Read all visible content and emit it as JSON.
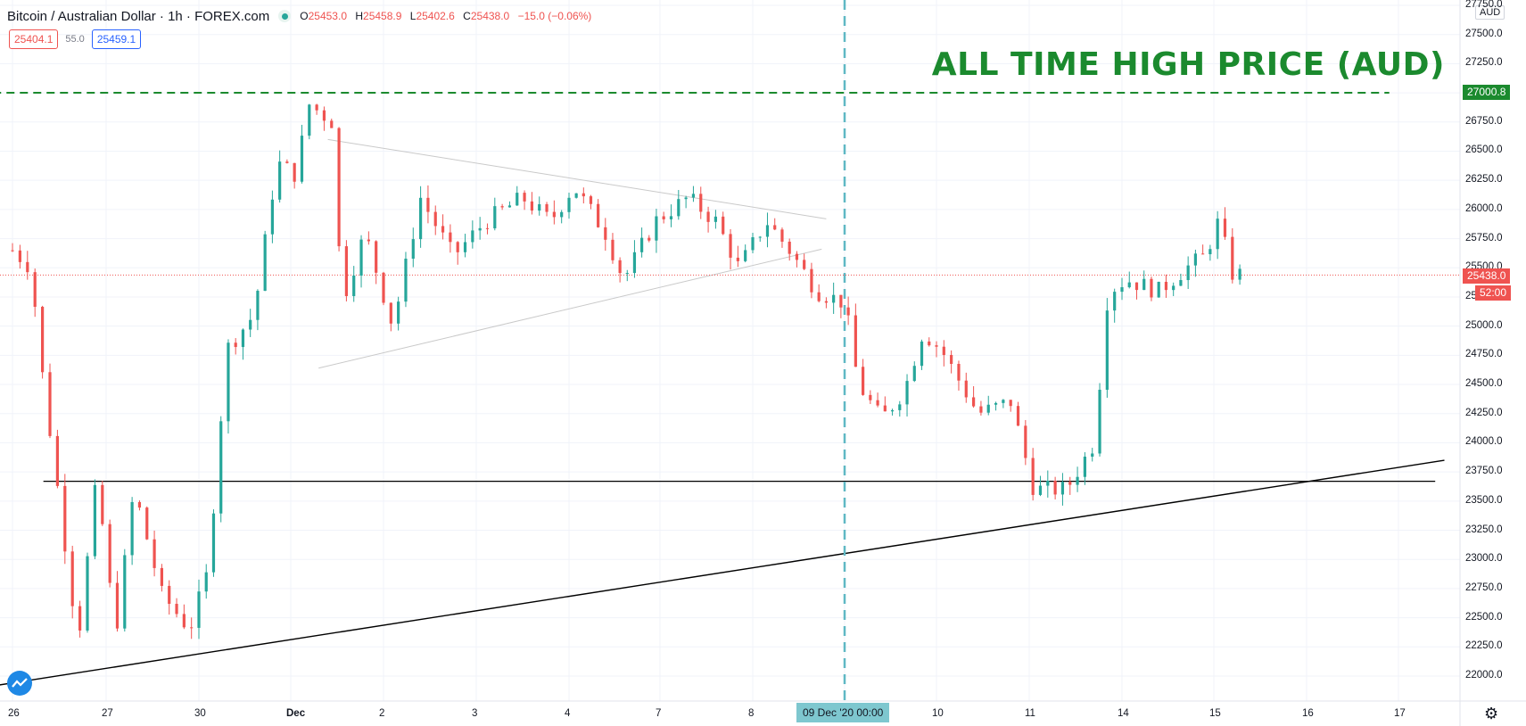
{
  "legend": {
    "symbol": "Bitcoin / Australian Dollar · 1h · FOREX.com",
    "open_key": "O",
    "open": "25453.0",
    "high_key": "H",
    "high": "25458.9",
    "low_key": "L",
    "low": "25402.6",
    "close_key": "C",
    "close": "25438.0",
    "change": "−15.0 (−0.06%)"
  },
  "quote": {
    "sell": "25404.1",
    "spread": "55.0",
    "buy": "25459.1"
  },
  "annotation": {
    "ath_text": "ALL TIME HIGH PRICE (AUD)"
  },
  "price_axis": {
    "currency": "AUD",
    "ticks": [
      "27750.0",
      "27500.0",
      "27250.0",
      "27000.0",
      "26750.0",
      "26500.0",
      "26250.0",
      "26000.0",
      "25750.0",
      "25500.0",
      "25250.0",
      "25000.0",
      "24750.0",
      "24500.0",
      "24250.0",
      "24000.0",
      "23750.0",
      "23500.0",
      "23250.0",
      "23000.0",
      "22750.0",
      "22500.0",
      "22250.0",
      "22000.0"
    ],
    "ath_level": "27000.8",
    "last_price": "25438.0",
    "countdown": "52:00"
  },
  "time_axis": {
    "ticks": [
      "26",
      "27",
      "30",
      "Dec",
      "2",
      "3",
      "4",
      "7",
      "8",
      "10",
      "11",
      "14",
      "15",
      "16",
      "17"
    ],
    "crosshair_label": "09 Dec '20  00:00"
  },
  "colors": {
    "up": "#26a69a",
    "down": "#ef5350",
    "ath_line": "#1b8a2e",
    "crosshair": "#5fb8c4",
    "trendline": "#000000",
    "triangle": "#c9c9c9"
  },
  "icons": {
    "logo": "tradingview-logo-icon",
    "settings": "gear-icon"
  },
  "chart_data": {
    "type": "candlestick",
    "title": "Bitcoin / Australian Dollar · 1h · FOREX.com",
    "y_unit": "AUD",
    "ylim": [
      21850,
      27800
    ],
    "x_categories": [
      "26",
      "27",
      "30",
      "Dec",
      "2",
      "3",
      "4",
      "7",
      "8",
      "9",
      "10",
      "11",
      "14",
      "15",
      "16",
      "17"
    ],
    "ath_level": 27000.8,
    "last_price": 25438.0,
    "path_points": [
      [
        0,
        25650
      ],
      [
        0.2,
        25500
      ],
      [
        0.3,
        24700
      ],
      [
        0.55,
        23200
      ],
      [
        0.7,
        22300
      ],
      [
        0.9,
        23700
      ],
      [
        1.1,
        22350
      ],
      [
        1.3,
        23600
      ],
      [
        1.6,
        22700
      ],
      [
        1.9,
        22400
      ],
      [
        2.1,
        22900
      ],
      [
        2.3,
        24800
      ],
      [
        2.6,
        25100
      ],
      [
        2.85,
        26400
      ],
      [
        3.05,
        26300
      ],
      [
        3.2,
        26900
      ],
      [
        3.45,
        26750
      ],
      [
        3.55,
        25200
      ],
      [
        3.8,
        25800
      ],
      [
        4.1,
        25000
      ],
      [
        4.4,
        26100
      ],
      [
        4.75,
        25600
      ],
      [
        5.1,
        25900
      ],
      [
        5.5,
        26100
      ],
      [
        5.8,
        25900
      ],
      [
        6.05,
        26200
      ],
      [
        6.4,
        25800
      ],
      [
        6.6,
        25400
      ],
      [
        6.95,
        25900
      ],
      [
        7.3,
        26100
      ],
      [
        7.6,
        25900
      ],
      [
        7.85,
        25500
      ],
      [
        8.15,
        25900
      ],
      [
        8.4,
        25650
      ],
      [
        8.7,
        25300
      ],
      [
        9.0,
        25200
      ],
      [
        9.15,
        24500
      ],
      [
        9.4,
        24200
      ],
      [
        9.65,
        24450
      ],
      [
        9.85,
        24950
      ],
      [
        10.05,
        24800
      ],
      [
        10.45,
        24250
      ],
      [
        10.8,
        24350
      ],
      [
        11.05,
        23600
      ],
      [
        11.4,
        23600
      ],
      [
        11.7,
        24000
      ],
      [
        11.85,
        25300
      ],
      [
        12.05,
        25400
      ],
      [
        12.4,
        25300
      ],
      [
        12.7,
        25500
      ],
      [
        12.9,
        25600
      ],
      [
        13.05,
        25900
      ],
      [
        13.2,
        25450
      ],
      [
        13.35,
        25438
      ]
    ],
    "lines": [
      {
        "label": "ATH",
        "points": [
          [
            -0.35,
            27000.8
          ],
          [
            14.9,
            27000.8
          ]
        ]
      },
      {
        "label": "support",
        "points": [
          [
            0.33,
            23670
          ],
          [
            15.4,
            23670
          ]
        ]
      },
      {
        "label": "rising trendline",
        "points": [
          [
            -0.33,
            21900
          ],
          [
            15.5,
            23850
          ]
        ]
      },
      {
        "label": "triangle top",
        "points": [
          [
            3.4,
            26600
          ],
          [
            8.8,
            25920
          ]
        ]
      },
      {
        "label": "triangle bottom",
        "points": [
          [
            3.3,
            24640
          ],
          [
            8.75,
            25660
          ]
        ]
      }
    ],
    "crosshair_x": 9.0,
    "grid": true
  }
}
